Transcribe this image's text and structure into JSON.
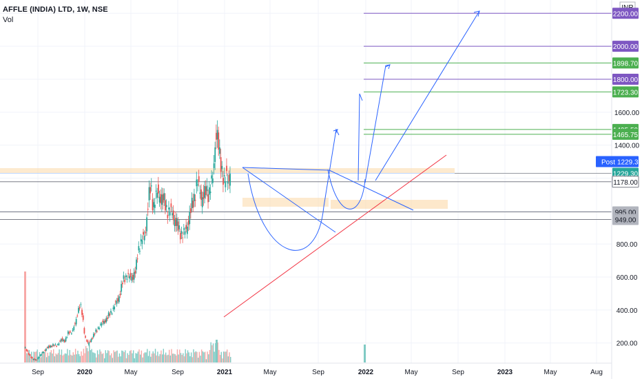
{
  "header": {
    "symbol_line": "AFFLE (INDIA) LTD, 1W, NSE",
    "volume_label": "Vol",
    "currency": "INR"
  },
  "colors": {
    "up": "#26a69a",
    "down": "#ef5350",
    "vol_up": "#80cbc4",
    "vol_down": "#f7a9a7",
    "green_level": "#4caf50",
    "purple_level": "#7e57c2",
    "blue_drawing": "#2962ff",
    "trendline": "#f23645",
    "zone": "#fbd9a8",
    "grey_level": "#787b86"
  },
  "chart_data": {
    "type": "candlestick",
    "title": "AFFLE (INDIA) LTD, 1W, NSE",
    "x_axis": {
      "ticks": [
        "Sep",
        "2020",
        "May",
        "Sep",
        "2021",
        "May",
        "Sep",
        "2022",
        "May",
        "Sep",
        "2023",
        "May",
        "Aug"
      ],
      "range": [
        "2019-08",
        "2023-09"
      ]
    },
    "y_axis": {
      "ticks": [
        "200.00",
        "400.00",
        "600.00",
        "800.00",
        "1400.00",
        "1600.00"
      ],
      "range": [
        90,
        2280
      ]
    },
    "last_price": {
      "label": "Post",
      "value": "1229.30"
    },
    "price_levels": [
      {
        "value": 2200.0,
        "label": "2200.00",
        "color": "purple"
      },
      {
        "value": 2000.0,
        "label": "2000.00",
        "color": "purple"
      },
      {
        "value": 1898.7,
        "label": "1898.70",
        "color": "green"
      },
      {
        "value": 1800.0,
        "label": "1800.00",
        "color": "purple"
      },
      {
        "value": 1723.3,
        "label": "1723.30",
        "color": "green"
      },
      {
        "value": 1495.5,
        "label": "1495.50",
        "color": "green"
      },
      {
        "value": 1465.75,
        "label": "1465.75",
        "color": "green"
      },
      {
        "value": 1229.3,
        "label": "1229.30",
        "color": "current"
      },
      {
        "value": 1178.0,
        "label": "1178.00",
        "color": "grey"
      },
      {
        "value": 995.0,
        "label": "995.00",
        "color": "grey"
      },
      {
        "value": 949.0,
        "label": "949.00",
        "color": "grey"
      }
    ],
    "series": [
      {
        "name": "AFFLE",
        "values": [
          [
            0,
            170
          ],
          [
            14,
            100
          ],
          [
            20,
            98
          ],
          [
            26,
            118
          ],
          [
            32,
            148
          ],
          [
            36,
            158
          ],
          [
            42,
            180
          ],
          [
            48,
            183
          ],
          [
            56,
            188
          ],
          [
            64,
            220
          ],
          [
            70,
            215
          ],
          [
            76,
            265
          ],
          [
            82,
            268
          ],
          [
            88,
            320
          ],
          [
            92,
            400
          ],
          [
            96,
            430
          ],
          [
            100,
            360
          ],
          [
            104,
            240
          ],
          [
            110,
            190
          ],
          [
            116,
            230
          ],
          [
            122,
            262
          ],
          [
            128,
            298
          ],
          [
            134,
            318
          ],
          [
            142,
            350
          ],
          [
            150,
            390
          ],
          [
            156,
            430
          ],
          [
            162,
            470
          ],
          [
            166,
            520
          ],
          [
            170,
            580
          ],
          [
            176,
            610
          ],
          [
            182,
            595
          ],
          [
            188,
            610
          ],
          [
            192,
            640
          ],
          [
            196,
            760
          ],
          [
            200,
            810
          ],
          [
            204,
            830
          ],
          [
            208,
            850
          ],
          [
            212,
            1000
          ],
          [
            214,
            1080
          ],
          [
            218,
            1140
          ],
          [
            222,
            1030
          ],
          [
            226,
            1080
          ],
          [
            230,
            1110
          ],
          [
            234,
            1090
          ],
          [
            238,
            1070
          ],
          [
            242,
            1050
          ],
          [
            246,
            1010
          ],
          [
            250,
            990
          ],
          [
            254,
            1000
          ],
          [
            258,
            960
          ],
          [
            262,
            920
          ],
          [
            266,
            890
          ],
          [
            270,
            870
          ],
          [
            274,
            855
          ],
          [
            278,
            880
          ],
          [
            282,
            930
          ],
          [
            286,
            980
          ],
          [
            290,
            1050
          ],
          [
            294,
            1100
          ],
          [
            298,
            1170
          ],
          [
            302,
            1140
          ],
          [
            306,
            1080
          ],
          [
            310,
            1090
          ],
          [
            314,
            1130
          ],
          [
            318,
            1110
          ],
          [
            322,
            1150
          ],
          [
            326,
            1220
          ],
          [
            328,
            1370
          ],
          [
            330,
            1450
          ],
          [
            332,
            1480
          ],
          [
            336,
            1350
          ],
          [
            340,
            1280
          ],
          [
            342,
            1230
          ],
          [
            346,
            1150
          ],
          [
            348,
            1220
          ],
          [
            352,
            1200
          ],
          [
            356,
            1229.3
          ]
        ]
      }
    ],
    "volume": {
      "label": "Vol"
    }
  }
}
